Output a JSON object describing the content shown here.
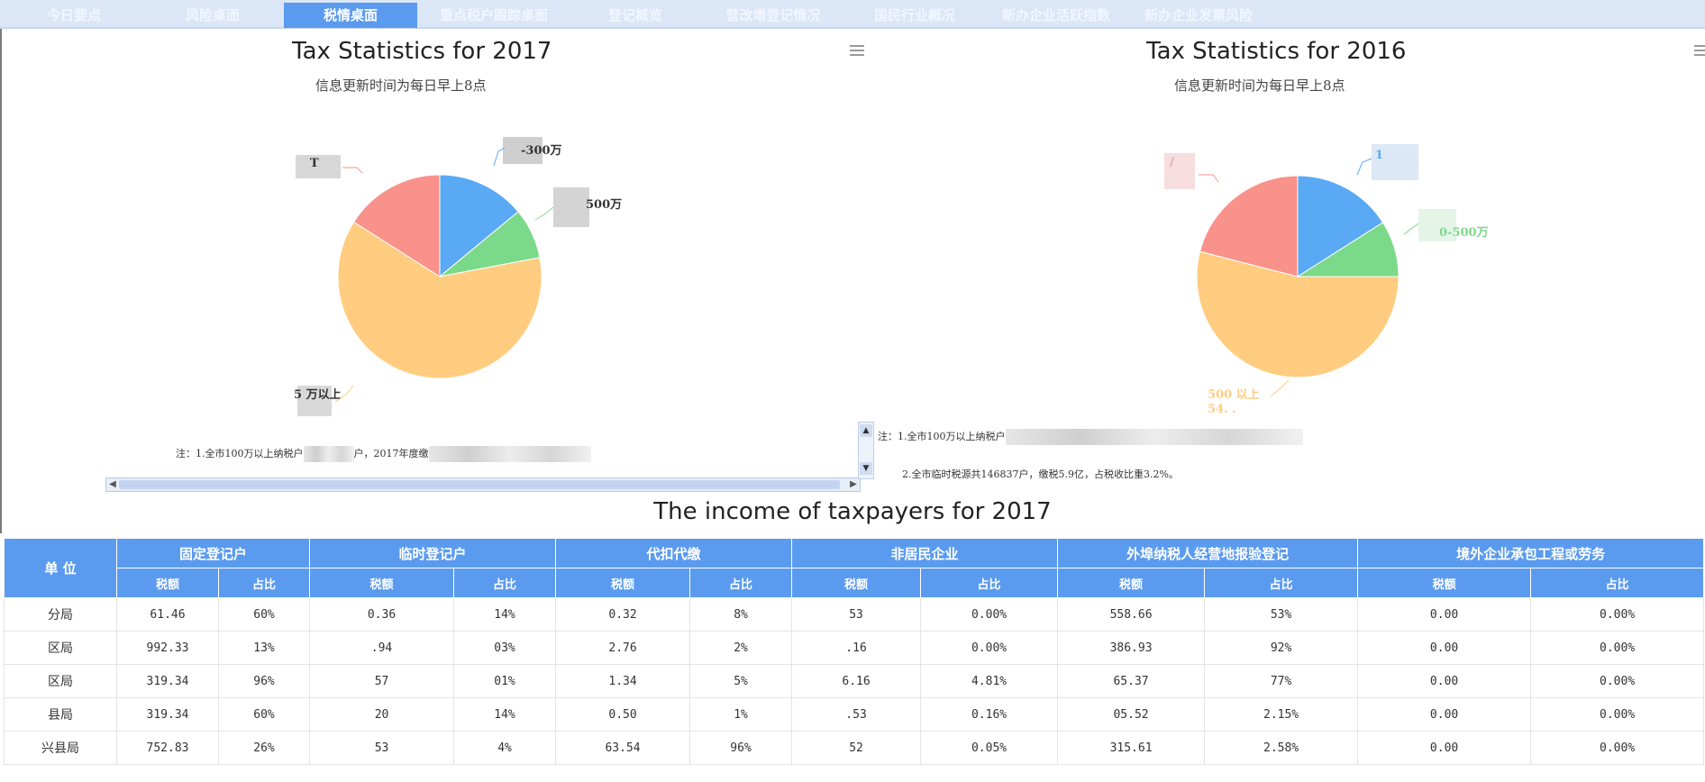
{
  "nav": {
    "tabs": [
      {
        "label": "今日要点",
        "active": false
      },
      {
        "label": "风险桌面",
        "active": false
      },
      {
        "label": "税情桌面",
        "active": true
      },
      {
        "label": "重点税户跟踪桌面",
        "active": false
      },
      {
        "label": "登记概览",
        "active": false
      },
      {
        "label": "营改增登记情况",
        "active": false
      },
      {
        "label": "国民行业概况",
        "active": false
      },
      {
        "label": "新办企业活跃指数",
        "active": false
      },
      {
        "label": "新办企业发票风险",
        "active": false
      }
    ]
  },
  "chart_left": {
    "title": "Tax Statistics for 2017",
    "subtitle": "信息更新时间为每日早上8点",
    "labels": [
      "T",
      "-300万",
      "500万",
      "5 万以上"
    ],
    "note": "注：1.全市100万以上纳税户",
    "note_mid": "户，2017年度缴",
    "colors": {
      "blue": "#5aa9f4",
      "green": "#7bd98a",
      "orange": "#ffcc80",
      "red": "#f8928a"
    }
  },
  "chart_right": {
    "title": "Tax Statistics for 2016",
    "subtitle": "信息更新时间为每日早上8点",
    "labels": [
      "1",
      "0-500万",
      "500 以上",
      "54. ."
    ],
    "note1": "注：1.全市100万以上纳税户",
    "note2": "2.全市临时税源共146837户，缴税5.9亿，占税收比重3.2%。"
  },
  "chart_data": [
    {
      "type": "pie",
      "title": "Tax Statistics for 2017",
      "subtitle": "信息更新时间为每日早上8点",
      "slices": [
        {
          "label": "-300万",
          "value": 14,
          "color": "#5aa9f4"
        },
        {
          "label": "500万",
          "value": 8,
          "color": "#7bd98a"
        },
        {
          "label": "5 万以上",
          "value": 62,
          "color": "#ffcc80"
        },
        {
          "label": "T",
          "value": 16,
          "color": "#f8928a"
        }
      ]
    },
    {
      "type": "pie",
      "title": "Tax Statistics for 2016",
      "subtitle": "信息更新时间为每日早上8点",
      "slices": [
        {
          "label": "1",
          "value": 16,
          "color": "#5aa9f4"
        },
        {
          "label": "0-500万",
          "value": 9,
          "color": "#7bd98a"
        },
        {
          "label": "500 以上",
          "value": 54,
          "color": "#ffcc80"
        },
        {
          "label": "",
          "value": 21,
          "color": "#f8928a"
        }
      ]
    }
  ],
  "table": {
    "title": "The income of taxpayers for 2017",
    "unit_header": "单 位",
    "groups": [
      "固定登记户",
      "临时登记户",
      "代扣代缴",
      "非居民企业",
      "外埠纳税人经营地报验登记",
      "境外企业承包工程或劳务"
    ],
    "sub_tax": "税额",
    "sub_ratio": "占比",
    "rows": [
      {
        "unit": "分局",
        "cells": [
          "61.46",
          "60%",
          "0.36",
          "14%",
          "0.32",
          "8%",
          "53",
          "0.00%",
          "558.66",
          "53%",
          "0.00",
          "0.00%"
        ]
      },
      {
        "unit": "区局",
        "cells": [
          "992.33",
          "13%",
          ".94",
          "03%",
          "2.76",
          "2%",
          ".16",
          "0.00%",
          "386.93",
          "92%",
          "0.00",
          "0.00%"
        ]
      },
      {
        "unit": "区局",
        "cells": [
          "319.34",
          "96%",
          "57",
          "01%",
          "1.34",
          "5%",
          "6.16",
          "4.81%",
          "65.37",
          "77%",
          "0.00",
          "0.00%"
        ]
      },
      {
        "unit": "县局",
        "cells": [
          "319.34",
          "60%",
          "20",
          "14%",
          "0.50",
          "1%",
          ".53",
          "0.16%",
          "05.52",
          "2.15%",
          "0.00",
          "0.00%"
        ]
      },
      {
        "unit": "兴县局",
        "cells": [
          "752.83",
          "26%",
          "53",
          "4%",
          "63.54",
          "96%",
          "52",
          "0.05%",
          "315.61",
          "2.58%",
          "0.00",
          "0.00%"
        ]
      }
    ]
  }
}
